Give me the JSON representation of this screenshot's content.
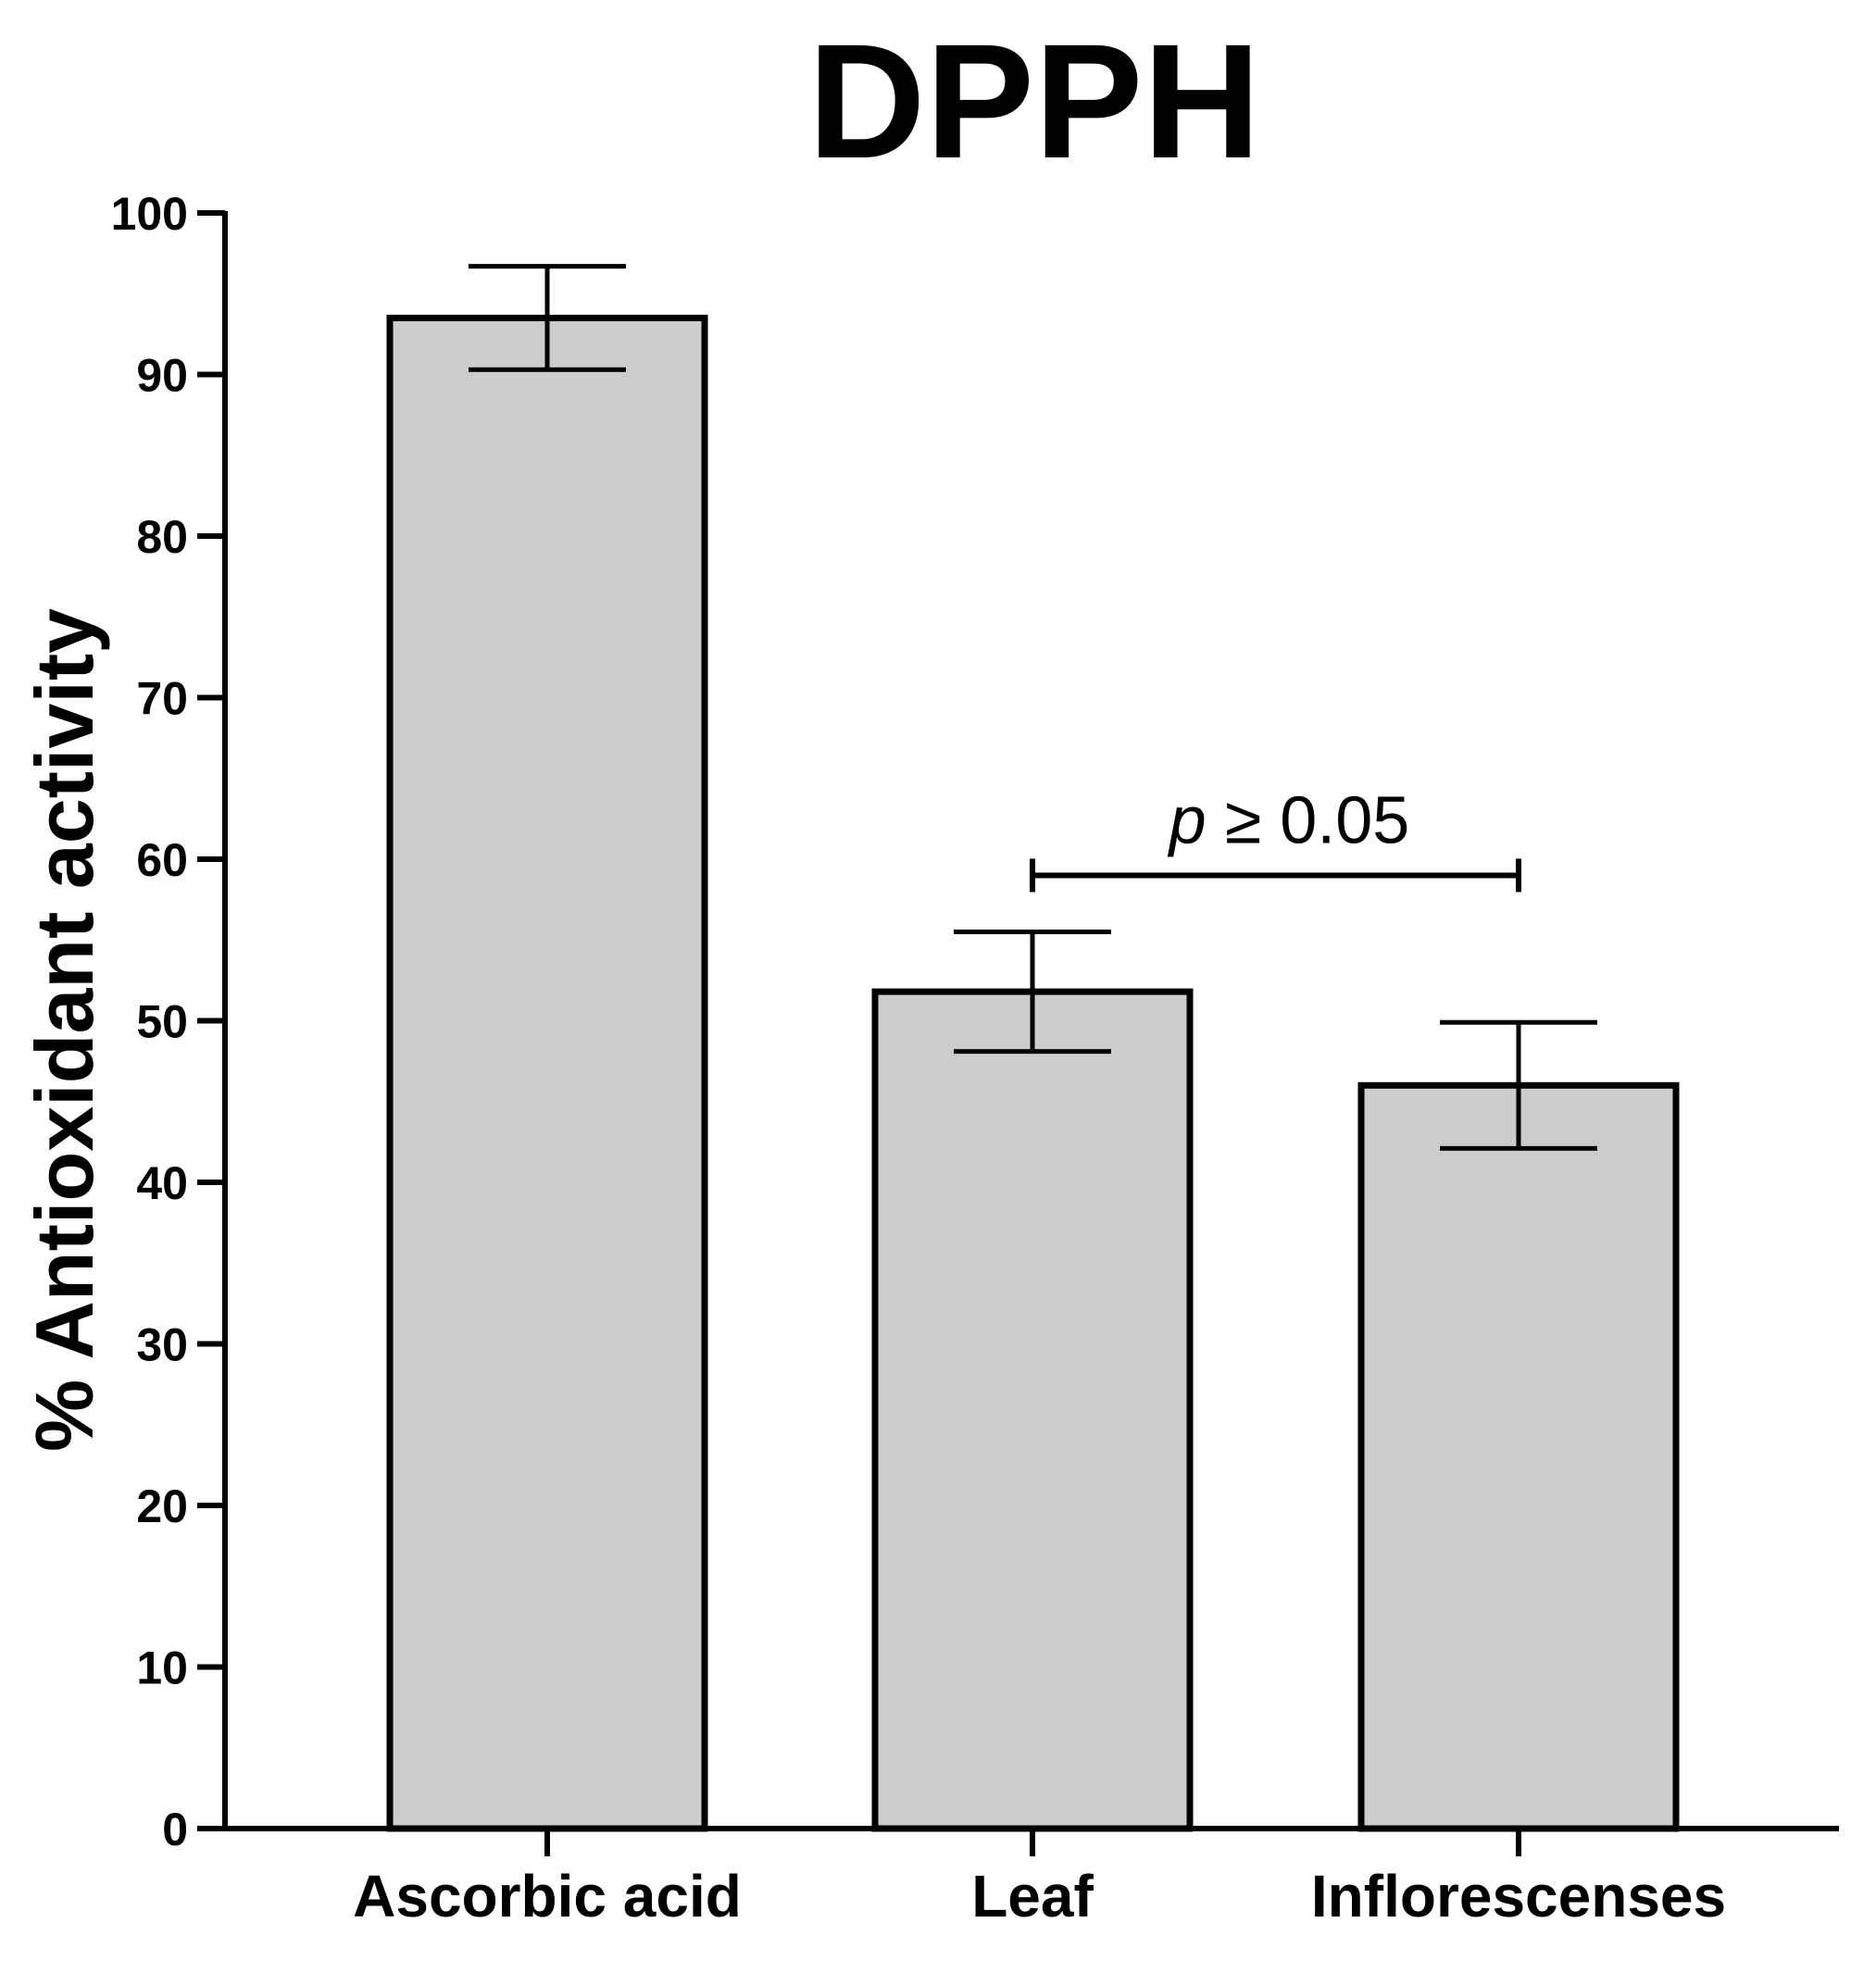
{
  "chart_data": {
    "type": "bar",
    "title": "DPPH",
    "xlabel": "",
    "ylabel": "% Antioxidant activity",
    "categories": [
      "Ascorbic acid",
      "Leaf",
      "Inflorescenses"
    ],
    "values": [
      93.5,
      51.8,
      46.0
    ],
    "error": [
      3.2,
      3.7,
      3.9
    ],
    "ylim": [
      0,
      100
    ],
    "yticks": [
      0,
      10,
      20,
      30,
      40,
      50,
      60,
      70,
      80,
      90,
      100
    ],
    "grid": false,
    "bar_color": "#cccccc",
    "edge_color": "#000000",
    "annotations": [
      {
        "from_category": "Leaf",
        "to_category": "Inflorescenses",
        "y": 59,
        "label_italic": "p",
        "label_rest": " ≥ 0.05"
      }
    ]
  }
}
